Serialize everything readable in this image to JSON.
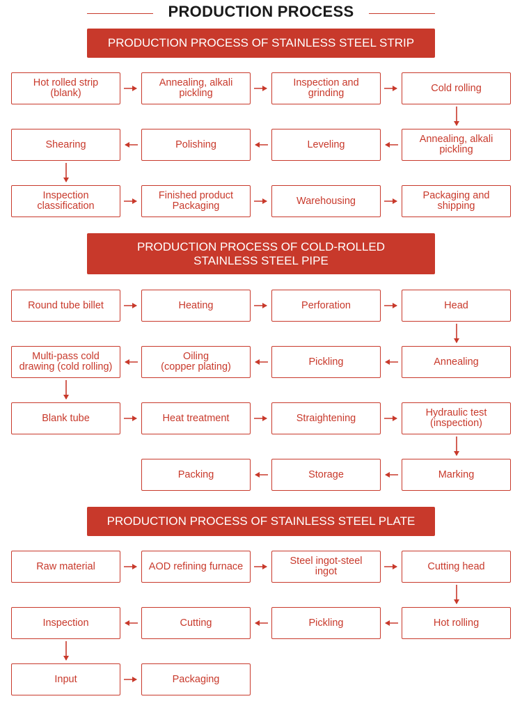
{
  "title": "PRODUCTION PROCESS",
  "accent_color": "#c8392b",
  "sections": [
    {
      "header": "PRODUCTION PROCESS OF STAINLESS STEEL STRIP",
      "steps": [
        "Hot rolled strip\n(blank)",
        "Annealing, alkali\npickling",
        "Inspection and\ngrinding",
        "Cold rolling",
        "Annealing, alkali\npickling",
        "Leveling",
        "Polishing",
        "Shearing",
        "Inspection\nclassification",
        "Finished product\nPackaging",
        "Warehousing",
        "Packaging and\nshipping"
      ]
    },
    {
      "header": "PRODUCTION PROCESS OF COLD-ROLLED\nSTAINLESS STEEL PIPE",
      "steps": [
        "Round tube billet",
        "Heating",
        "Perforation",
        "Head",
        "Annealing",
        "Pickling",
        "Oiling\n(copper plating)",
        "Multi-pass cold\ndrawing (cold rolling)",
        "Blank tube",
        "Heat treatment",
        "Straightening",
        "Hydraulic test\n(inspection)",
        "Marking",
        "Storage",
        "Packing"
      ]
    },
    {
      "header": "PRODUCTION PROCESS OF STAINLESS STEEL PLATE",
      "steps": [
        "Raw material",
        "AOD refining furnace",
        "Steel ingot-steel\ningot",
        "Cutting head",
        "Hot rolling",
        "Pickling",
        "Cutting",
        "Inspection",
        "Input",
        "Packaging"
      ]
    }
  ]
}
